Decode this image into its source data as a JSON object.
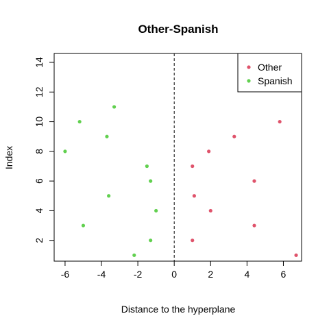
{
  "chart_data": {
    "type": "scatter",
    "title": "Other-Spanish",
    "xlabel": "Distance to the hyperplane",
    "ylabel": "Index",
    "xlim": [
      -6.6,
      7.0
    ],
    "ylim": [
      0.6,
      14.6
    ],
    "x_ticks": [
      -6,
      -4,
      -2,
      0,
      2,
      4,
      6
    ],
    "y_ticks": [
      2,
      4,
      6,
      8,
      10,
      12,
      14
    ],
    "reference_line": {
      "x": 0,
      "style": "dashed"
    },
    "grid": false,
    "legend_position": "top-right",
    "series": [
      {
        "name": "Other",
        "color": "#DF536B",
        "points": [
          {
            "x": 6.7,
            "y": 1
          },
          {
            "x": 1.0,
            "y": 2
          },
          {
            "x": 4.4,
            "y": 3
          },
          {
            "x": 2.0,
            "y": 4
          },
          {
            "x": 1.1,
            "y": 5
          },
          {
            "x": 4.4,
            "y": 6
          },
          {
            "x": 1.0,
            "y": 7
          },
          {
            "x": 1.9,
            "y": 8
          },
          {
            "x": 3.3,
            "y": 9
          },
          {
            "x": 5.8,
            "y": 10
          }
        ]
      },
      {
        "name": "Spanish",
        "color": "#61D04F",
        "points": [
          {
            "x": -2.2,
            "y": 1
          },
          {
            "x": -1.3,
            "y": 2
          },
          {
            "x": -5.0,
            "y": 3
          },
          {
            "x": -1.0,
            "y": 4
          },
          {
            "x": -3.6,
            "y": 5
          },
          {
            "x": -1.3,
            "y": 6
          },
          {
            "x": -1.5,
            "y": 7
          },
          {
            "x": -6.0,
            "y": 8
          },
          {
            "x": -3.7,
            "y": 9
          },
          {
            "x": -5.2,
            "y": 10
          },
          {
            "x": -3.3,
            "y": 11
          }
        ]
      }
    ]
  }
}
